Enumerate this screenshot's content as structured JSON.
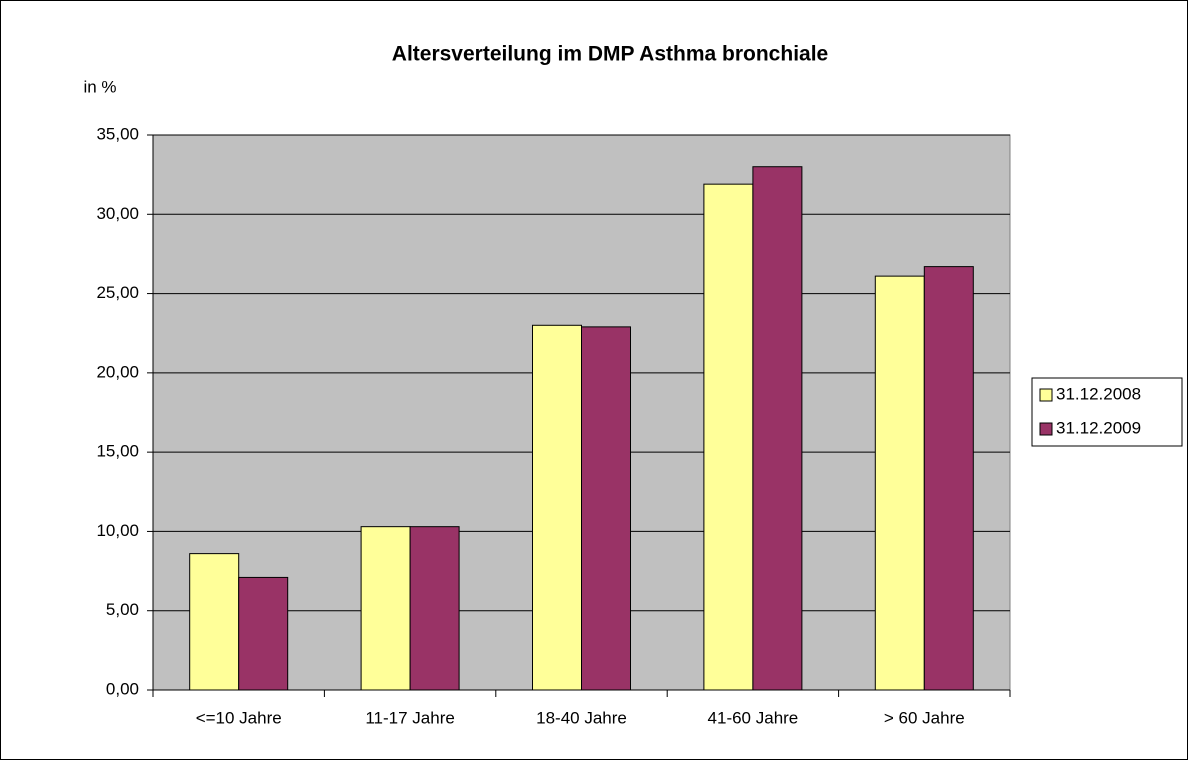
{
  "chart_data": {
    "type": "bar",
    "title": "Altersverteilung im DMP Asthma bronchiale",
    "y_label": "in %",
    "categories": [
      "<=10 Jahre",
      "11-17 Jahre",
      "18-40 Jahre",
      "41-60 Jahre",
      "> 60 Jahre"
    ],
    "series": [
      {
        "name": "31.12.2008",
        "color": "#ffff99",
        "values": [
          8.6,
          10.3,
          23.0,
          31.9,
          26.1
        ]
      },
      {
        "name": "31.12.2009",
        "color": "#993366",
        "values": [
          7.1,
          10.3,
          22.9,
          33.0,
          26.7
        ]
      }
    ],
    "ylim": [
      0,
      35
    ],
    "yticks": [
      {
        "value": 0,
        "label": "0,00"
      },
      {
        "value": 5,
        "label": "5,00"
      },
      {
        "value": 10,
        "label": "10,00"
      },
      {
        "value": 15,
        "label": "15,00"
      },
      {
        "value": 20,
        "label": "20,00"
      },
      {
        "value": 25,
        "label": "25,00"
      },
      {
        "value": 30,
        "label": "30,00"
      },
      {
        "value": 35,
        "label": "35,00"
      }
    ],
    "grid": true,
    "legend": "right"
  }
}
